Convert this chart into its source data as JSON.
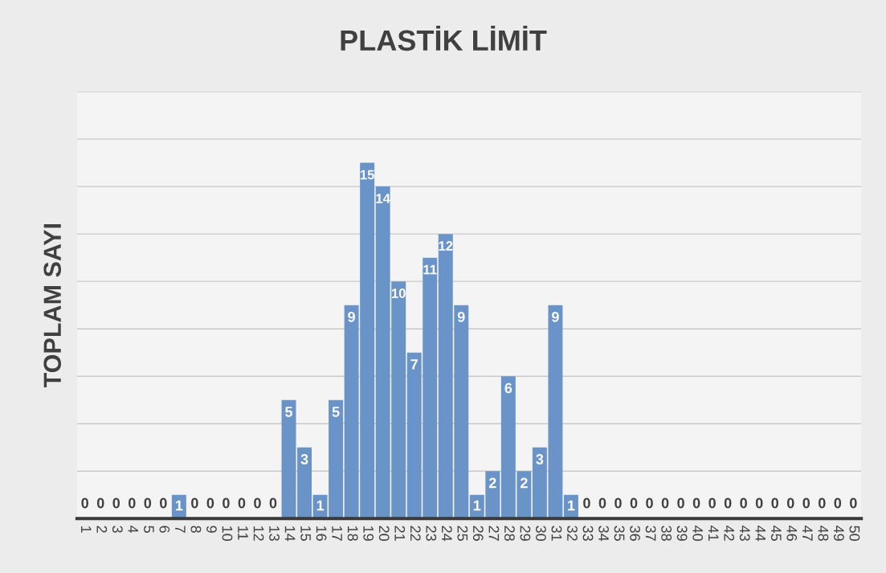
{
  "chart_data": {
    "type": "bar",
    "title": "PLASTİK LİMİT",
    "ylabel": "TOPLAM SAYI",
    "categories": [
      "1",
      "2",
      "3",
      "4",
      "5",
      "6",
      "7",
      "8",
      "9",
      "10",
      "11",
      "12",
      "13",
      "14",
      "15",
      "16",
      "17",
      "18",
      "19",
      "20",
      "21",
      "22",
      "23",
      "24",
      "25",
      "26",
      "27",
      "28",
      "29",
      "30",
      "31",
      "32",
      "33",
      "34",
      "35",
      "36",
      "37",
      "38",
      "39",
      "40",
      "41",
      "42",
      "43",
      "44",
      "45",
      "46",
      "47",
      "48",
      "49",
      "50"
    ],
    "values": [
      0,
      0,
      0,
      0,
      0,
      0,
      1,
      0,
      0,
      0,
      0,
      0,
      0,
      5,
      3,
      1,
      5,
      9,
      15,
      14,
      10,
      7,
      11,
      12,
      9,
      1,
      2,
      6,
      2,
      3,
      9,
      1,
      0,
      0,
      0,
      0,
      0,
      0,
      0,
      0,
      0,
      0,
      0,
      0,
      0,
      0,
      0,
      0,
      0,
      0
    ],
    "color": "#6a93c8",
    "data_labels": true,
    "grid": "y",
    "tick_labels": "x",
    "ylim": [
      0,
      18
    ],
    "yticks": [
      {
        "value": 0,
        "label": null
      },
      {
        "value": 2,
        "label": null
      },
      {
        "value": 4,
        "label": null
      },
      {
        "value": 6,
        "label": null
      },
      {
        "value": 8,
        "label": null
      },
      {
        "value": 10,
        "label": null
      },
      {
        "value": 12,
        "label": null
      },
      {
        "value": 14,
        "label": null
      },
      {
        "value": 16,
        "label": null
      },
      {
        "value": 18,
        "label": null
      }
    ]
  }
}
